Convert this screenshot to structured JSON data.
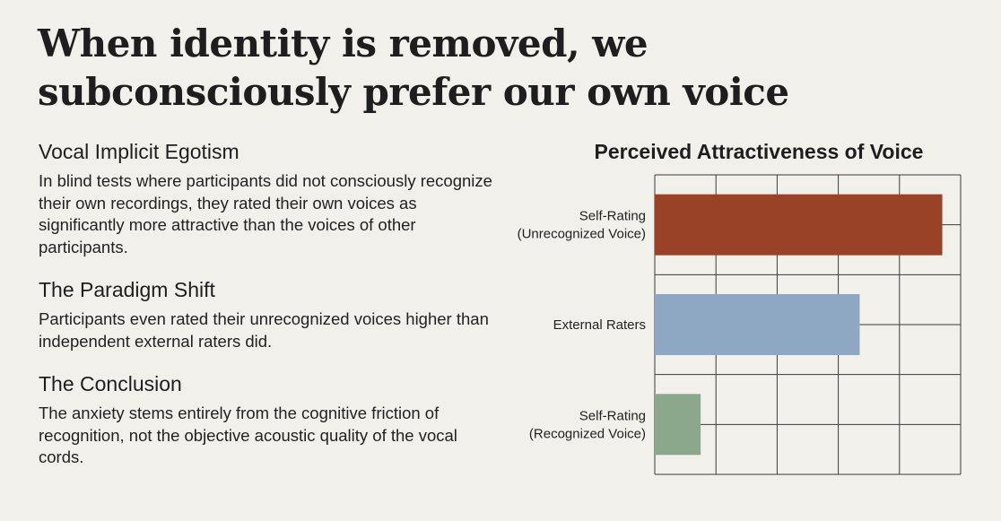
{
  "headline": "When identity is removed, we subconsciously prefer our own voice",
  "sections": [
    {
      "heading": "Vocal Implicit Egotism",
      "body": "In blind tests where participants did not consciously recognize their own recordings, they rated their own voices as significantly more attractive than the voices of other participants."
    },
    {
      "heading": "The Paradigm Shift",
      "body": "Participants even rated their unrecognized voices higher than independent external raters did."
    },
    {
      "heading": "The Conclusion",
      "body": "The anxiety stems entirely from the cognitive friction of recognition, not the objective acoustic quality of the vocal cords."
    }
  ],
  "chart_data": {
    "type": "bar",
    "orientation": "horizontal",
    "title": "Perceived Attractiveness of Voice",
    "xlabel": "",
    "ylabel": "",
    "grid": true,
    "legend": "none",
    "xlim": [
      0,
      5
    ],
    "categories": [
      [
        "Self-Rating",
        "(Unrecognized Voice)"
      ],
      [
        "External Raters"
      ],
      [
        "Self-Rating",
        "(Recognized Voice)"
      ]
    ],
    "values": [
      4.7,
      3.35,
      0.75
    ],
    "colors": [
      "#9a4228",
      "#8ea8c4",
      "#8ca88c"
    ]
  }
}
